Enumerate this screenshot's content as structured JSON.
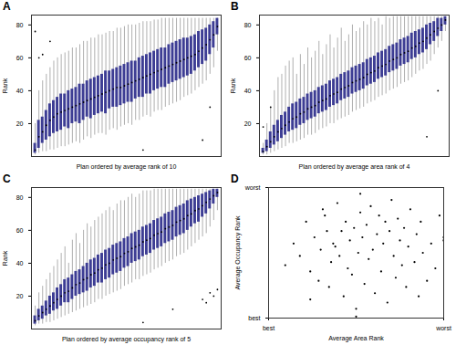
{
  "chart_data": [
    {
      "type": "boxplot",
      "title": "A",
      "xlabel": "Plan ordered by average rank of 10",
      "ylabel": "Rank",
      "color": "#3d3d94",
      "tick_labels": "y",
      "xlim": [
        0,
        51
      ],
      "xticks": [],
      "ylim": [
        0,
        86
      ],
      "yticks": [
        20,
        40,
        60,
        80
      ],
      "x": [
        1,
        2,
        3,
        4,
        5,
        6,
        7,
        8,
        9,
        10,
        11,
        12,
        13,
        14,
        15,
        16,
        17,
        18,
        19,
        20,
        21,
        22,
        23,
        24,
        25,
        26,
        27,
        28,
        29,
        30,
        31,
        32,
        33,
        34,
        35,
        36,
        37,
        38,
        39,
        40,
        41,
        42,
        43,
        44,
        45,
        46,
        47,
        48,
        49,
        50
      ],
      "min": [
        1,
        2,
        3,
        3,
        4,
        4,
        5,
        6,
        6,
        7,
        8,
        9,
        8,
        10,
        12,
        11,
        13,
        14,
        14,
        13,
        16,
        17,
        16,
        18,
        19,
        20,
        19,
        22,
        22,
        24,
        25,
        24,
        27,
        28,
        28,
        30,
        31,
        32,
        33,
        34,
        36,
        37,
        38,
        40,
        42,
        44,
        46,
        50,
        54,
        64
      ],
      "q1": [
        2,
        5,
        8,
        10,
        12,
        14,
        15,
        16,
        18,
        17,
        20,
        21,
        20,
        22,
        24,
        23,
        25,
        26,
        27,
        26,
        29,
        30,
        30,
        31,
        32,
        33,
        33,
        35,
        36,
        36,
        38,
        38,
        40,
        41,
        42,
        42,
        44,
        45,
        46,
        47,
        48,
        49,
        50,
        52,
        54,
        56,
        58,
        62,
        66,
        74
      ],
      "median": [
        4,
        12,
        15,
        19,
        22,
        24,
        26,
        27,
        28,
        29,
        30,
        31,
        32,
        33,
        34,
        35,
        36,
        37,
        38,
        39,
        40,
        41,
        42,
        42,
        43,
        44,
        45,
        46,
        47,
        48,
        49,
        50,
        51,
        52,
        53,
        54,
        55,
        56,
        57,
        58,
        59,
        60,
        61,
        62,
        64,
        66,
        68,
        71,
        74,
        79
      ],
      "q3": [
        8,
        22,
        24,
        28,
        32,
        34,
        36,
        38,
        38,
        40,
        41,
        42,
        44,
        44,
        46,
        47,
        48,
        49,
        50,
        52,
        52,
        53,
        54,
        55,
        56,
        57,
        58,
        58,
        60,
        61,
        62,
        63,
        64,
        65,
        66,
        66,
        68,
        69,
        70,
        71,
        72,
        72,
        73,
        74,
        76,
        77,
        78,
        80,
        82,
        84
      ],
      "max": [
        20,
        40,
        46,
        50,
        54,
        58,
        60,
        62,
        63,
        64,
        66,
        66,
        68,
        70,
        70,
        72,
        72,
        74,
        74,
        75,
        76,
        76,
        78,
        78,
        79,
        80,
        80,
        80,
        81,
        82,
        82,
        82,
        83,
        83,
        84,
        84,
        84,
        84,
        84,
        84,
        84,
        84,
        84,
        84,
        84,
        84,
        84,
        84,
        84,
        84
      ],
      "outliers": {
        "x": [
          1,
          2,
          3,
          5,
          30,
          46,
          48
        ],
        "y": [
          76,
          60,
          62,
          70,
          4,
          10,
          30
        ]
      }
    },
    {
      "type": "boxplot",
      "title": "B",
      "xlabel": "Plan ordered by average area rank of 4",
      "ylabel": "Rank",
      "color": "#3d3d94",
      "tick_labels": "y",
      "xlim": [
        0,
        51
      ],
      "xticks": [],
      "ylim": [
        0,
        86
      ],
      "yticks": [
        20,
        40,
        60,
        80
      ],
      "x": [
        1,
        2,
        3,
        4,
        5,
        6,
        7,
        8,
        9,
        10,
        11,
        12,
        13,
        14,
        15,
        16,
        17,
        18,
        19,
        20,
        21,
        22,
        23,
        24,
        25,
        26,
        27,
        28,
        29,
        30,
        31,
        32,
        33,
        34,
        35,
        36,
        37,
        38,
        39,
        40,
        41,
        42,
        43,
        44,
        45,
        46,
        47,
        48,
        49,
        50
      ],
      "min": [
        1,
        1,
        2,
        3,
        4,
        5,
        6,
        8,
        8,
        9,
        10,
        11,
        13,
        13,
        14,
        16,
        17,
        18,
        20,
        20,
        22,
        23,
        24,
        25,
        27,
        28,
        29,
        30,
        32,
        33,
        34,
        36,
        37,
        38,
        40,
        41,
        42,
        44,
        45,
        46,
        48,
        50,
        52,
        53,
        56,
        58,
        62,
        66,
        70,
        76
      ],
      "q1": [
        2,
        3,
        5,
        7,
        9,
        11,
        13,
        15,
        16,
        17,
        19,
        20,
        22,
        23,
        24,
        26,
        27,
        28,
        30,
        31,
        32,
        34,
        35,
        36,
        38,
        39,
        40,
        41,
        43,
        44,
        45,
        47,
        48,
        49,
        51,
        52,
        53,
        55,
        56,
        57,
        59,
        60,
        62,
        63,
        65,
        68,
        70,
        73,
        76,
        80
      ],
      "median": [
        3,
        6,
        9,
        12,
        15,
        17,
        19,
        21,
        23,
        24,
        26,
        27,
        29,
        30,
        31,
        33,
        34,
        35,
        37,
        38,
        39,
        41,
        42,
        43,
        45,
        46,
        47,
        48,
        50,
        51,
        52,
        54,
        55,
        56,
        58,
        59,
        60,
        62,
        63,
        64,
        66,
        67,
        69,
        70,
        72,
        74,
        76,
        78,
        80,
        83
      ],
      "q3": [
        5,
        10,
        15,
        19,
        22,
        25,
        27,
        30,
        32,
        33,
        35,
        36,
        38,
        39,
        40,
        42,
        43,
        44,
        46,
        47,
        48,
        50,
        51,
        52,
        54,
        55,
        56,
        57,
        59,
        60,
        61,
        63,
        64,
        65,
        67,
        68,
        69,
        71,
        72,
        73,
        75,
        76,
        77,
        78,
        80,
        81,
        82,
        84,
        84,
        85
      ],
      "max": [
        8,
        20,
        30,
        40,
        48,
        50,
        55,
        58,
        60,
        50,
        62,
        56,
        66,
        60,
        64,
        70,
        62,
        68,
        74,
        66,
        72,
        78,
        70,
        74,
        80,
        76,
        78,
        82,
        80,
        84,
        82,
        84,
        80,
        85,
        84,
        85,
        85,
        85,
        85,
        85,
        85,
        85,
        85,
        85,
        85,
        85,
        85,
        85,
        85,
        85
      ],
      "outliers": {
        "x": [
          1,
          3,
          45,
          48
        ],
        "y": [
          18,
          30,
          12,
          40
        ]
      }
    },
    {
      "type": "boxplot",
      "title": "C",
      "xlabel": "Plan ordered by average occupancy rank of 5",
      "ylabel": "Rank",
      "color": "#3d3d94",
      "tick_labels": "y",
      "xlim": [
        0,
        51
      ],
      "xticks": [],
      "ylim": [
        0,
        86
      ],
      "yticks": [
        20,
        40,
        60,
        80
      ],
      "x": [
        1,
        2,
        3,
        4,
        5,
        6,
        7,
        8,
        9,
        10,
        11,
        12,
        13,
        14,
        15,
        16,
        17,
        18,
        19,
        20,
        21,
        22,
        23,
        24,
        25,
        26,
        27,
        28,
        29,
        30,
        31,
        32,
        33,
        34,
        35,
        36,
        37,
        38,
        39,
        40,
        41,
        42,
        43,
        44,
        45,
        46,
        47,
        48,
        49,
        50
      ],
      "min": [
        2,
        3,
        3,
        4,
        4,
        5,
        6,
        7,
        8,
        9,
        10,
        11,
        12,
        13,
        14,
        15,
        16,
        18,
        18,
        20,
        21,
        22,
        23,
        24,
        26,
        27,
        28,
        30,
        30,
        32,
        33,
        34,
        36,
        37,
        38,
        40,
        41,
        42,
        44,
        45,
        46,
        48,
        50,
        52,
        54,
        56,
        58,
        62,
        66,
        72
      ],
      "q1": [
        3,
        5,
        6,
        8,
        9,
        11,
        12,
        14,
        16,
        16,
        18,
        20,
        21,
        22,
        23,
        25,
        26,
        28,
        28,
        30,
        31,
        33,
        34,
        35,
        37,
        38,
        40,
        41,
        42,
        44,
        45,
        46,
        48,
        49,
        50,
        52,
        53,
        54,
        56,
        57,
        58,
        60,
        62,
        64,
        65,
        68,
        70,
        73,
        76,
        80
      ],
      "median": [
        5,
        8,
        10,
        12,
        14,
        16,
        18,
        20,
        22,
        23,
        25,
        27,
        28,
        30,
        31,
        33,
        34,
        36,
        37,
        39,
        40,
        42,
        43,
        44,
        46,
        47,
        49,
        50,
        51,
        53,
        54,
        55,
        57,
        58,
        59,
        61,
        62,
        63,
        65,
        66,
        67,
        69,
        70,
        72,
        73,
        75,
        77,
        79,
        81,
        83
      ],
      "q3": [
        8,
        12,
        14,
        17,
        20,
        22,
        25,
        27,
        30,
        31,
        33,
        35,
        36,
        38,
        40,
        42,
        43,
        45,
        46,
        48,
        49,
        51,
        52,
        53,
        55,
        56,
        58,
        59,
        60,
        62,
        63,
        64,
        66,
        67,
        68,
        70,
        71,
        72,
        74,
        75,
        76,
        78,
        79,
        80,
        81,
        82,
        83,
        84,
        85,
        85
      ],
      "max": [
        14,
        22,
        26,
        30,
        34,
        38,
        42,
        46,
        50,
        40,
        54,
        58,
        52,
        60,
        64,
        62,
        66,
        68,
        70,
        72,
        74,
        72,
        76,
        78,
        78,
        80,
        82,
        80,
        82,
        84,
        84,
        84,
        85,
        85,
        85,
        85,
        85,
        85,
        85,
        85,
        85,
        85,
        85,
        85,
        85,
        85,
        85,
        85,
        85,
        85
      ],
      "outliers": {
        "x": [
          30,
          38,
          46,
          47,
          48,
          49,
          50
        ],
        "y": [
          4,
          12,
          18,
          16,
          22,
          20,
          24
        ]
      }
    },
    {
      "type": "scatter",
      "title": "D",
      "xlabel": "Average Area Rank",
      "ylabel": "Average Occupancy Rank",
      "color": "#000000",
      "marker": "circle",
      "xlim": [
        0,
        84
      ],
      "xticks": [
        {
          "value": 0,
          "label": "best"
        },
        {
          "value": 84,
          "label": "worst"
        }
      ],
      "ylim": [
        0,
        84
      ],
      "yticks": [
        {
          "value": 0,
          "label": "best"
        },
        {
          "value": 84,
          "label": "worst"
        }
      ],
      "x": [
        8,
        12,
        15,
        18,
        20,
        22,
        24,
        25,
        27,
        28,
        29,
        30,
        31,
        32,
        33,
        34,
        35,
        36,
        37,
        38,
        39,
        40,
        41,
        42,
        42,
        43,
        44,
        45,
        46,
        47,
        48,
        49,
        50,
        51,
        52,
        53,
        54,
        55,
        56,
        57,
        58,
        59,
        60,
        61,
        62,
        63,
        64,
        65,
        66,
        67,
        68,
        70,
        71,
        72,
        73,
        74,
        76,
        78,
        80,
        82,
        84,
        84,
        20,
        26,
        44
      ],
      "y": [
        34,
        48,
        40,
        62,
        30,
        52,
        24,
        44,
        66,
        56,
        20,
        36,
        48,
        46,
        74,
        40,
        56,
        14,
        62,
        32,
        50,
        28,
        58,
        6,
        1,
        42,
        68,
        52,
        22,
        60,
        38,
        72,
        44,
        16,
        54,
        66,
        30,
        48,
        62,
        10,
        56,
        76,
        40,
        26,
        64,
        50,
        34,
        58,
        20,
        46,
        70,
        36,
        54,
        14,
        62,
        42,
        24,
        48,
        32,
        66,
        50,
        52,
        12,
        70,
        80
      ]
    }
  ]
}
